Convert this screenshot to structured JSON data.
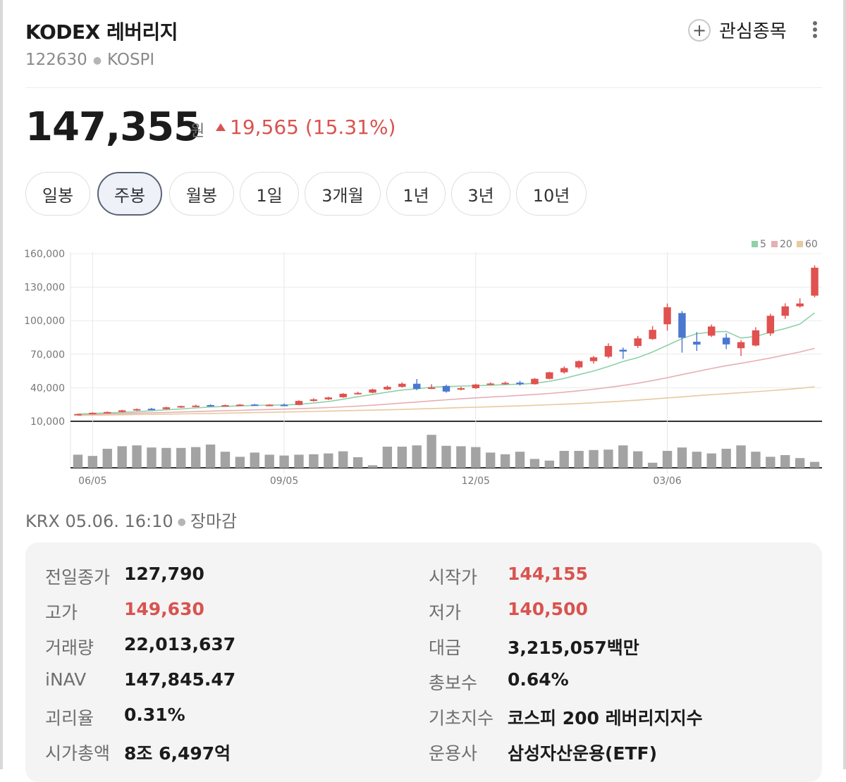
{
  "header": {
    "title": "KODEX 레버리지",
    "code": "122630",
    "market": "KOSPI",
    "watchlist_label": "관심종목"
  },
  "quote": {
    "price": "147,355",
    "unit": "원",
    "change": "19,565 (15.31%)",
    "direction": "up"
  },
  "tabs": [
    {
      "label": "일봉",
      "active": false
    },
    {
      "label": "주봉",
      "active": true
    },
    {
      "label": "월봉",
      "active": false
    },
    {
      "label": "1일",
      "active": false
    },
    {
      "label": "3개월",
      "active": false
    },
    {
      "label": "1년",
      "active": false
    },
    {
      "label": "3년",
      "active": false
    },
    {
      "label": "10년",
      "active": false
    }
  ],
  "chart_data": {
    "type": "candlestick",
    "y_ticks": [
      "160,000",
      "130,000",
      "100,000",
      "70,000",
      "40,000",
      "10,000"
    ],
    "ylim": [
      10000,
      160000
    ],
    "x_labels": [
      "06/05",
      "09/05",
      "12/05",
      "03/06"
    ],
    "x_label_weeks": [
      1,
      14,
      27,
      40
    ],
    "legend": [
      "5",
      "20",
      "60"
    ],
    "legend_colors": {
      "5": "#8fd1a8",
      "20": "#e7aeb4",
      "60": "#e8c9a0"
    },
    "up_color": "#e0514f",
    "down_color": "#4a77d0",
    "ohlc": [
      [
        16000,
        16800,
        15400,
        16500
      ],
      [
        16500,
        18000,
        16000,
        17600
      ],
      [
        17500,
        18800,
        17000,
        18300
      ],
      [
        18400,
        20300,
        18000,
        19800
      ],
      [
        19800,
        21500,
        19200,
        20900
      ],
      [
        21200,
        22000,
        20000,
        20800
      ],
      [
        20900,
        23000,
        20500,
        22500
      ],
      [
        22500,
        24000,
        22000,
        23600
      ],
      [
        23600,
        24800,
        23000,
        24000
      ],
      [
        24500,
        25200,
        23200,
        24000
      ],
      [
        24000,
        25000,
        23200,
        24400
      ],
      [
        24400,
        25500,
        24000,
        24900
      ],
      [
        25000,
        25600,
        24200,
        24500
      ],
      [
        24500,
        25300,
        23600,
        24800
      ],
      [
        24800,
        26000,
        24000,
        24600
      ],
      [
        24600,
        28800,
        24400,
        28200
      ],
      [
        28200,
        30600,
        27600,
        29600
      ],
      [
        29600,
        32000,
        29000,
        31300
      ],
      [
        31500,
        35200,
        31000,
        34600
      ],
      [
        34600,
        36400,
        33800,
        35400
      ],
      [
        35600,
        39200,
        35000,
        38500
      ],
      [
        38500,
        42000,
        38000,
        40800
      ],
      [
        40800,
        44800,
        40200,
        43600
      ],
      [
        43600,
        47800,
        37800,
        39000
      ],
      [
        40000,
        43200,
        38800,
        40200
      ],
      [
        41600,
        42800,
        35600,
        36600
      ],
      [
        38600,
        40800,
        37600,
        39600
      ],
      [
        39600,
        43600,
        39000,
        42900
      ],
      [
        43000,
        44800,
        42400,
        43800
      ],
      [
        43800,
        45600,
        42800,
        44400
      ],
      [
        44600,
        46200,
        42000,
        43200
      ],
      [
        43200,
        48800,
        42800,
        48000
      ],
      [
        48000,
        54400,
        47600,
        53800
      ],
      [
        53800,
        59200,
        52600,
        57600
      ],
      [
        58200,
        64500,
        57000,
        63800
      ],
      [
        63800,
        68400,
        61600,
        67200
      ],
      [
        67800,
        79800,
        66400,
        77400
      ],
      [
        74000,
        76000,
        65800,
        72400
      ],
      [
        77400,
        86400,
        75600,
        84200
      ],
      [
        83600,
        95200,
        82800,
        91800
      ],
      [
        96800,
        115400,
        91000,
        112000
      ],
      [
        106800,
        108600,
        71400,
        84800
      ],
      [
        81200,
        89800,
        73000,
        78600
      ],
      [
        86600,
        96600,
        85400,
        94800
      ],
      [
        84800,
        88600,
        74600,
        78800
      ],
      [
        75400,
        82600,
        68400,
        80800
      ],
      [
        77800,
        94200,
        77000,
        91400
      ],
      [
        88600,
        106200,
        86400,
        104400
      ],
      [
        104400,
        115600,
        101600,
        112800
      ],
      [
        112800,
        120000,
        111600,
        115400
      ],
      [
        122400,
        149600,
        120800,
        147400
      ]
    ],
    "ma5": [
      16500,
      17000,
      17500,
      18000,
      18500,
      19500,
      20300,
      21000,
      22000,
      22800,
      23300,
      23800,
      24200,
      24500,
      24600,
      25200,
      26300,
      27700,
      29700,
      32000,
      34000,
      36000,
      38000,
      39000,
      40500,
      41000,
      41500,
      41800,
      42300,
      42800,
      43200,
      44000,
      45800,
      48300,
      51700,
      55000,
      59000,
      63500,
      67000,
      72000,
      78000,
      84000,
      88400,
      89800,
      90400,
      84500,
      85900,
      89800,
      93000,
      97000,
      107000
    ],
    "ma20": [
      16000,
      16300,
      16600,
      16900,
      17200,
      17600,
      17900,
      18300,
      18700,
      19100,
      19500,
      19800,
      20200,
      20500,
      20900,
      21300,
      21800,
      22300,
      22900,
      23600,
      24400,
      25300,
      26300,
      27200,
      28200,
      29200,
      30100,
      30900,
      31700,
      32400,
      33200,
      34000,
      34900,
      36000,
      37300,
      38700,
      40300,
      42100,
      44100,
      46400,
      49000,
      51800,
      54500,
      57200,
      59700,
      61900,
      64200,
      66600,
      69300,
      72000,
      75200
    ],
    "ma60": [
      15200,
      15400,
      15600,
      15800,
      16000,
      16200,
      16400,
      16600,
      16800,
      17000,
      17300,
      17500,
      17800,
      18000,
      18300,
      18600,
      18800,
      19100,
      19400,
      19700,
      20000,
      20300,
      20600,
      21000,
      21400,
      21800,
      22200,
      22600,
      23000,
      23400,
      23800,
      24300,
      24800,
      25300,
      25900,
      26600,
      27300,
      28100,
      29000,
      29900,
      30900,
      31900,
      32900,
      33800,
      34700,
      35600,
      36500,
      37400,
      38400,
      39500,
      40800
    ],
    "volume": [
      0.31,
      0.28,
      0.45,
      0.51,
      0.53,
      0.48,
      0.47,
      0.47,
      0.49,
      0.55,
      0.38,
      0.26,
      0.36,
      0.31,
      0.29,
      0.31,
      0.32,
      0.34,
      0.39,
      0.25,
      0.06,
      0.5,
      0.5,
      0.53,
      0.78,
      0.52,
      0.51,
      0.49,
      0.36,
      0.32,
      0.38,
      0.21,
      0.17,
      0.4,
      0.4,
      0.42,
      0.43,
      0.53,
      0.39,
      0.12,
      0.4,
      0.48,
      0.38,
      0.34,
      0.45,
      0.53,
      0.38,
      0.26,
      0.3,
      0.23,
      0.14
    ]
  },
  "status": {
    "exchange": "KRX",
    "time": "05.06. 16:10",
    "state": "장마감"
  },
  "info": {
    "left": [
      {
        "label": "전일종가",
        "value": "127,790",
        "color": "dark"
      },
      {
        "label": "고가",
        "value": "149,630",
        "color": "red"
      },
      {
        "label": "거래량",
        "value": "22,013,637",
        "color": "dark"
      },
      {
        "label": "iNAV",
        "value": "147,845.47",
        "color": "dark"
      },
      {
        "label": "괴리율",
        "value": "0.31%",
        "color": "dark"
      },
      {
        "label": "시가총액",
        "value": "8조 6,497억",
        "color": "dark"
      }
    ],
    "right": [
      {
        "label": "시작가",
        "value": "144,155",
        "color": "red"
      },
      {
        "label": "저가",
        "value": "140,500",
        "color": "red"
      },
      {
        "label": "대금",
        "value": "3,215,057백만",
        "color": "dark"
      },
      {
        "label": "총보수",
        "value": "0.64%",
        "color": "dark"
      },
      {
        "label": "기초지수",
        "value": "코스피 200 레버리지지수",
        "color": "dark"
      },
      {
        "label": "운용사",
        "value": "삼성자산운용(ETF)",
        "color": "dark"
      }
    ]
  }
}
